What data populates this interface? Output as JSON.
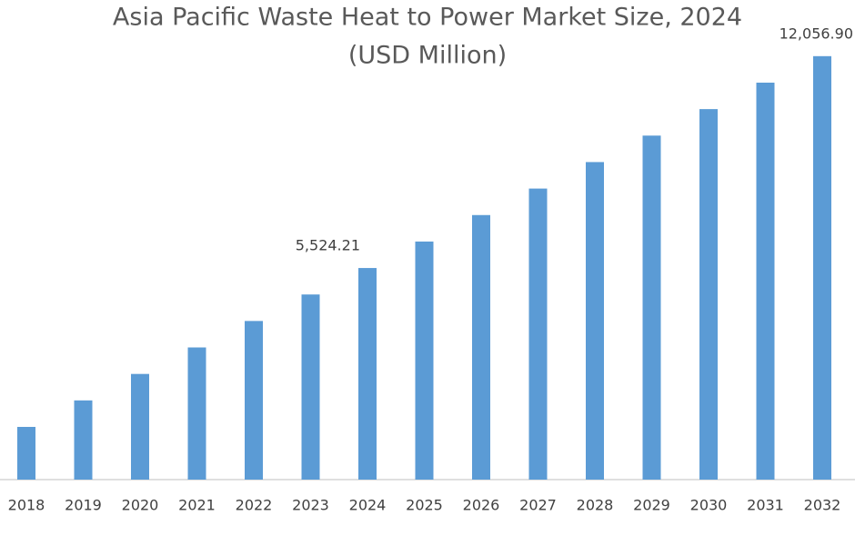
{
  "chart_data": {
    "type": "bar",
    "title": "Asia Pacific Waste Heat to Power Market Size, 2024",
    "subtitle": "(USD Million)",
    "categories": [
      "2018",
      "2019",
      "2020",
      "2021",
      "2022",
      "2023",
      "2024",
      "2025",
      "2026",
      "2027",
      "2028",
      "2029",
      "2030",
      "2031",
      "2032"
    ],
    "values": [
      625,
      1442,
      2258,
      3075,
      3891,
      4708,
      5524.21,
      6341,
      7157,
      7974,
      8791,
      9607,
      10424,
      11240,
      12056.9
    ],
    "value_labels": [
      null,
      null,
      null,
      null,
      null,
      null,
      "5,524.21",
      null,
      null,
      null,
      null,
      null,
      null,
      null,
      "12,056.90"
    ],
    "color": "#5b9bd5",
    "ylim": [
      -1000,
      12500
    ]
  }
}
